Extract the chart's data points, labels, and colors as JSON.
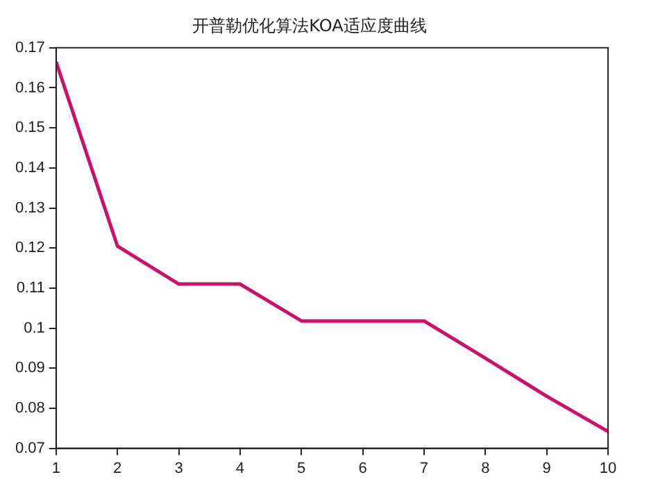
{
  "chart_data": {
    "type": "line",
    "title": "开普勒优化算法KOA适应度曲线",
    "x": [
      1,
      2,
      3,
      4,
      5,
      6,
      7,
      8,
      9,
      10
    ],
    "series": [
      {
        "color": "#cc1166",
        "values": [
          0.1665,
          0.1205,
          0.111,
          0.111,
          0.1018,
          0.1018,
          0.1018,
          0.0925,
          0.083,
          0.0742
        ]
      }
    ],
    "xlim": [
      1,
      10
    ],
    "xticks": [
      1,
      2,
      3,
      4,
      5,
      6,
      7,
      8,
      9,
      10
    ],
    "ylim": [
      0.07,
      0.17
    ],
    "yticks": [
      0.07,
      0.08,
      0.09,
      0.1,
      0.11,
      0.12,
      0.13,
      0.14,
      0.15,
      0.16,
      0.17
    ],
    "grid": false,
    "legend": false,
    "marker": "none",
    "line_style": "solid"
  }
}
